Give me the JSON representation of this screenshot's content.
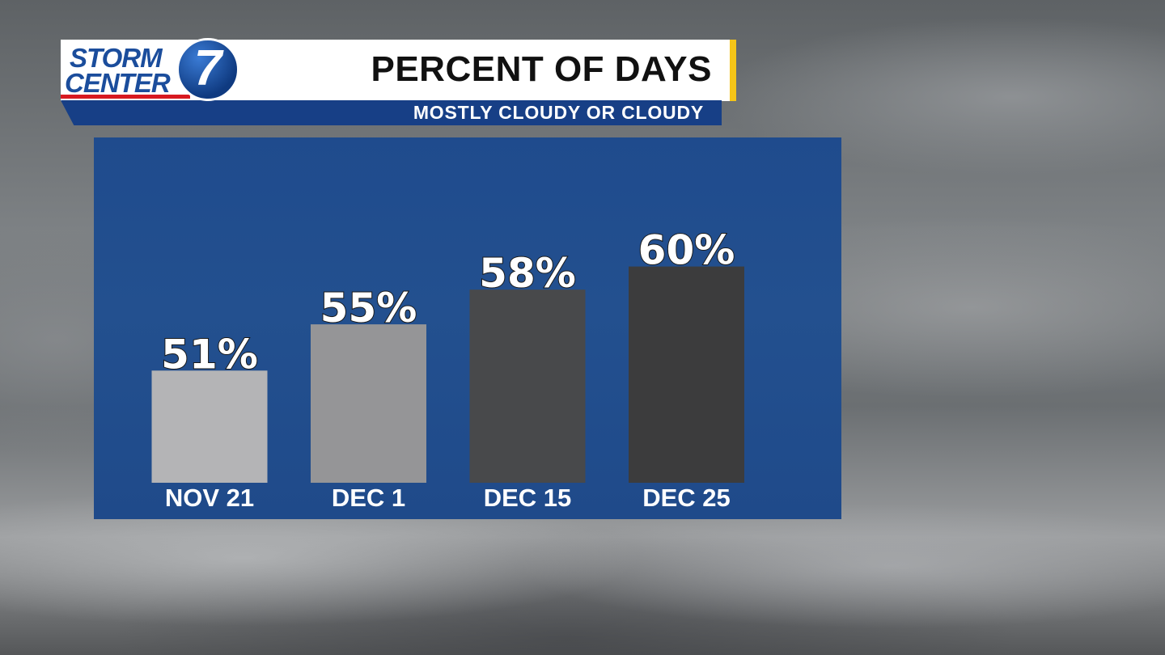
{
  "branding": {
    "logo_line1": "STORM",
    "logo_line2": "CENTER",
    "logo_number": "7"
  },
  "header": {
    "title": "PERCENT OF DAYS",
    "subtitle": "MOSTLY CLOUDY OR CLOUDY"
  },
  "colors": {
    "header_bg": "#ffffff",
    "accent_yellow": "#f5c518",
    "subtitle_bar": "#173f86",
    "panel_blue": "#23508f",
    "logo_blue": "#1b4d9c",
    "logo_red": "#d71920"
  },
  "chart_data": {
    "type": "bar",
    "title": "PERCENT OF DAYS",
    "subtitle": "MOSTLY CLOUDY OR CLOUDY",
    "categories": [
      "NOV 21",
      "DEC 1",
      "DEC 15",
      "DEC 25"
    ],
    "values": [
      51,
      55,
      58,
      60
    ],
    "value_labels": [
      "51%",
      "55%",
      "58%",
      "60%"
    ],
    "bar_colors": [
      "#b4b4b6",
      "#959597",
      "#48494b",
      "#3c3c3d"
    ],
    "ylim": [
      0,
      100
    ],
    "grid": false,
    "legend": "none"
  }
}
